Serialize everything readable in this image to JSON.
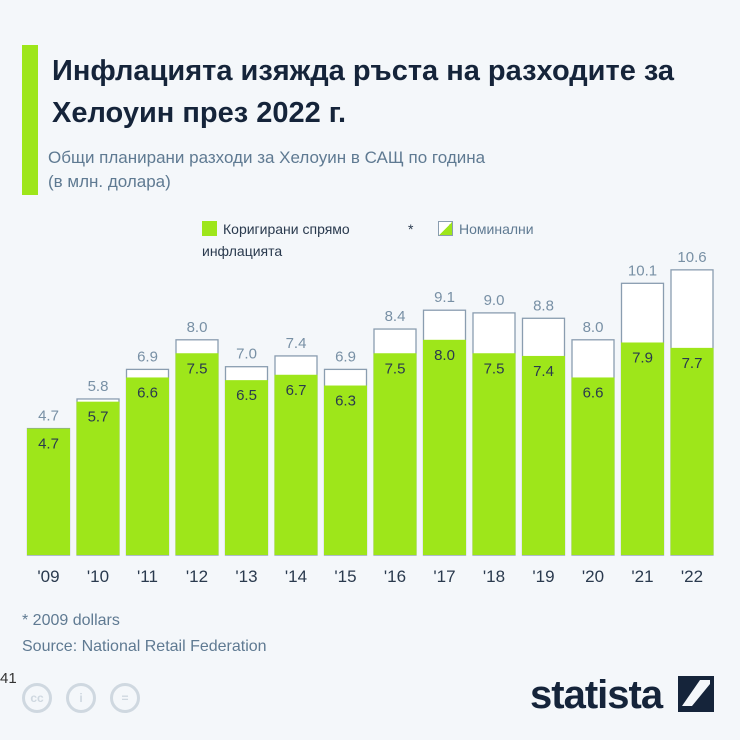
{
  "header": {
    "title": "Инфлацията изяжда ръста на разходите за Хелоуин през 2022 г.",
    "subtitle_line1": "Общи планирани разходи за Хелоуин в САЩ по година",
    "subtitle_line2": "(в млн. долара)"
  },
  "legend": {
    "adjusted": "Коригирани спрямо инфлацията",
    "asterisk": "*",
    "nominal": "Номинални"
  },
  "chart_data": {
    "type": "bar",
    "categories": [
      "'09",
      "'10",
      "'11",
      "'12",
      "'13",
      "'14",
      "'15",
      "'16",
      "'17",
      "'18",
      "'19",
      "'20",
      "'21",
      "'22"
    ],
    "series": [
      {
        "name": "Номинални",
        "values": [
          4.7,
          5.8,
          6.9,
          8.0,
          7.0,
          7.4,
          6.9,
          8.4,
          9.1,
          9.0,
          8.8,
          8.0,
          10.1,
          10.6
        ]
      },
      {
        "name": "Коригирани спрямо инфлацията",
        "values": [
          4.7,
          5.7,
          6.6,
          7.5,
          6.5,
          6.7,
          6.3,
          7.5,
          8.0,
          7.5,
          7.4,
          6.6,
          7.9,
          7.7
        ]
      }
    ],
    "ylim": [
      0,
      11
    ],
    "grid": false,
    "legend_position": "top",
    "colors": {
      "adjusted": "#9ee61a",
      "nominal_outline": "#8a9db0"
    }
  },
  "footer": {
    "note": "* 2009 dollars",
    "source": "Source: National Retail Federation",
    "edge_number": "41",
    "logo": "statista"
  }
}
